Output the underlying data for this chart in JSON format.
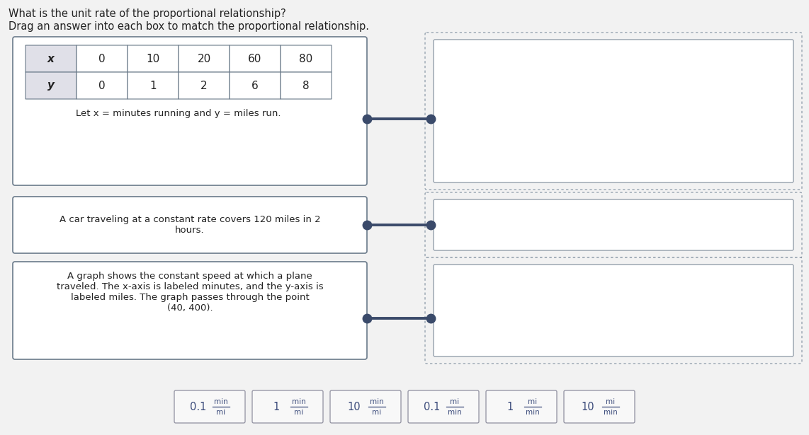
{
  "title1": "What is the unit rate of the proportional relationship?",
  "title2": "Drag an answer into each box to match the proportional relationship.",
  "table_x": [
    "x",
    "0",
    "10",
    "20",
    "60",
    "80"
  ],
  "table_y": [
    "y",
    "0",
    "1",
    "2",
    "6",
    "8"
  ],
  "table_note": "Let x = minutes running and y = miles run.",
  "card2_text": "A car traveling at a constant rate covers 120 miles in 2\nhours.",
  "card3_text": "A graph shows the constant speed at which a plane\ntraveled. The x-axis is labeled minutes, and the y-axis is\nlabeled miles. The graph passes through the point\n(40, 400).",
  "answer_labels": [
    "0.1",
    "1",
    "10",
    "0.1",
    "1",
    "10"
  ],
  "answer_units_top": [
    "min",
    "min",
    "min",
    "mi",
    "mi",
    "mi"
  ],
  "answer_units_bot": [
    "mi",
    "mi",
    "mi",
    "min",
    "min",
    "min"
  ],
  "bg_color": "#f2f2f2",
  "card_bg": "#ffffff",
  "card_border": "#6a7a8a",
  "dashed_box_outer": "#8090a0",
  "dashed_box_inner": "#8090a0",
  "answer_box_bg": "#f8f8f8",
  "answer_box_border": "#9090a0",
  "text_color": "#222222",
  "connector_color": "#3a4a6a",
  "table_header_bg": "#e0e0e8",
  "table_cell_bg": "#ffffff",
  "title_fontsize": 10.5,
  "card_text_fontsize": 9.5,
  "table_fontsize": 11
}
